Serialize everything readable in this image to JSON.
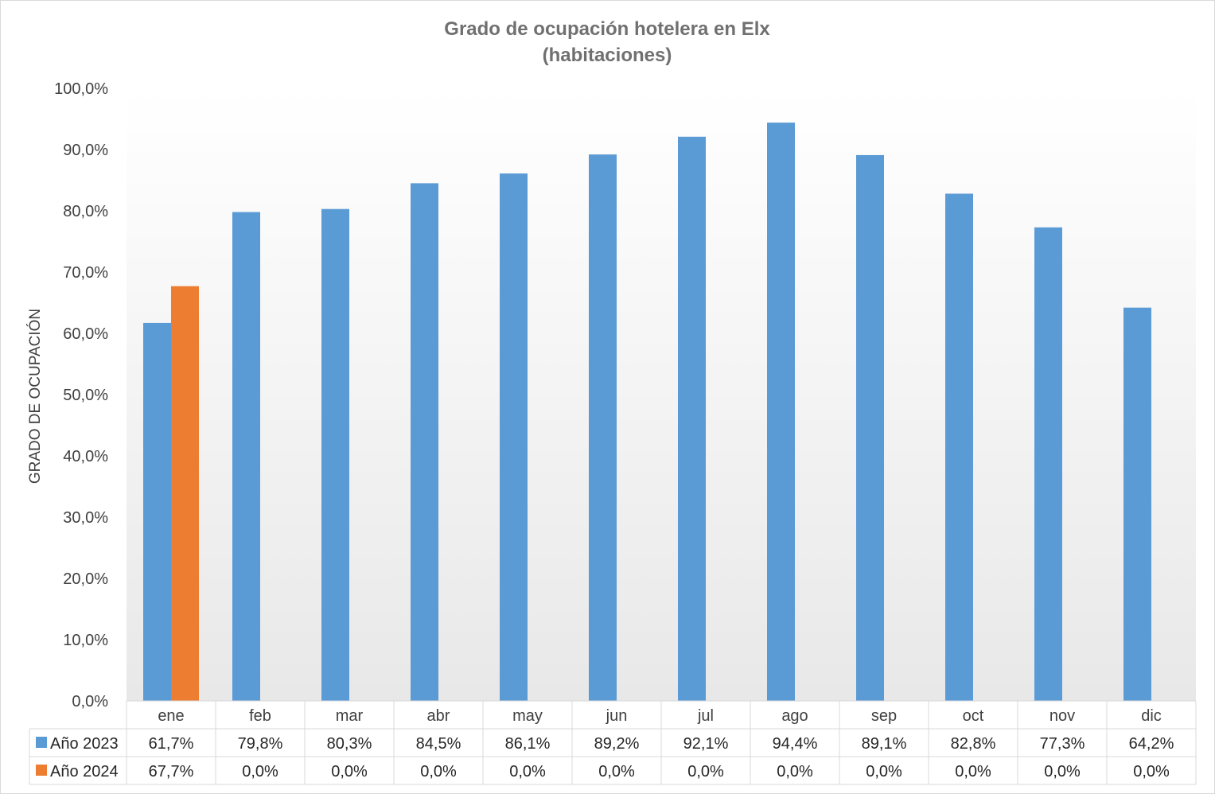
{
  "chart_data": {
    "type": "bar",
    "title": "Grado de ocupación hotelera en Elx",
    "subtitle": "(habitaciones)",
    "ylabel": "GRADO DE OCUPACIÓN",
    "xlabel": "",
    "ylim": [
      0,
      100
    ],
    "yticks": [
      "0,0%",
      "10,0%",
      "20,0%",
      "30,0%",
      "40,0%",
      "50,0%",
      "60,0%",
      "70,0%",
      "80,0%",
      "90,0%",
      "100,0%"
    ],
    "categories": [
      "ene",
      "feb",
      "mar",
      "abr",
      "may",
      "jun",
      "jul",
      "ago",
      "sep",
      "oct",
      "nov",
      "dic"
    ],
    "series": [
      {
        "name": "Año 2023",
        "color": "#5b9bd5",
        "values": [
          61.7,
          79.8,
          80.3,
          84.5,
          86.1,
          89.2,
          92.1,
          94.4,
          89.1,
          82.8,
          77.3,
          64.2
        ],
        "labels": [
          "61,7%",
          "79,8%",
          "80,3%",
          "84,5%",
          "86,1%",
          "89,2%",
          "92,1%",
          "94,4%",
          "89,1%",
          "82,8%",
          "77,3%",
          "64,2%"
        ]
      },
      {
        "name": "Año 2024",
        "color": "#ed7d31",
        "values": [
          67.7,
          0,
          0,
          0,
          0,
          0,
          0,
          0,
          0,
          0,
          0,
          0
        ],
        "labels": [
          "67,7%",
          "0,0%",
          "0,0%",
          "0,0%",
          "0,0%",
          "0,0%",
          "0,0%",
          "0,0%",
          "0,0%",
          "0,0%",
          "0,0%",
          "0,0%"
        ]
      }
    ],
    "data_table": true,
    "grid": false,
    "legend": "data-table"
  }
}
